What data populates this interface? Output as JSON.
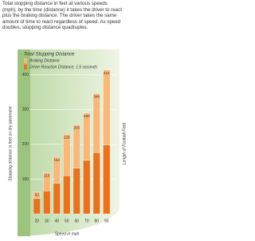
{
  "intro": "Total stopping distance in feet at various speeds (mph), by the time (distance) it takes the driver to react plus the braking distance. The driver takes the same amount of time to react regardless of speed. As speed doubles, stopping distance quadruples.",
  "chart_data": {
    "type": "bar",
    "stacked": true,
    "title": "Total Stopping Distance",
    "x_label": "Speed in mph",
    "y_label": "Stopping distance in feet on dry pavement",
    "annotation": "Length of Football Field",
    "categories": [
      "20",
      "30",
      "40",
      "50",
      "60",
      "70",
      "80",
      "90"
    ],
    "series": [
      {
        "name": "Driver Reaction Distance, 1.5 seconds",
        "color": "#e8731f",
        "values": [
          44,
          66,
          88,
          110,
          132,
          154,
          176,
          198
        ]
      },
      {
        "name": "Braking Distance",
        "color": "#f8b87a",
        "values": [
          19,
          53,
          76,
          119,
          124,
          136,
          170,
          216
        ]
      }
    ],
    "totals": [
      63,
      119,
      164,
      229,
      256,
      290,
      346,
      414
    ],
    "ylim": [
      0,
      450
    ],
    "yticks": [
      100,
      200,
      300,
      400
    ],
    "grid": true
  }
}
